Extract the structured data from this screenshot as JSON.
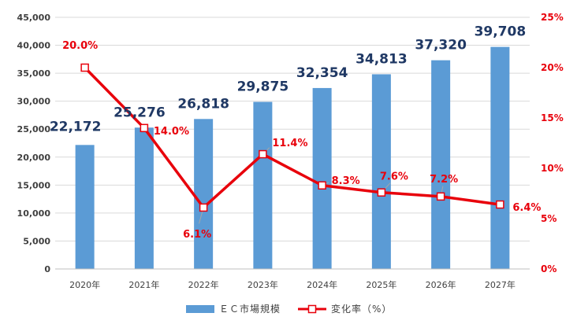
{
  "chart_data": {
    "type": "bar",
    "categories": [
      "2020年",
      "2021年",
      "2022年",
      "2023年",
      "2024年",
      "2025年",
      "2026年",
      "2027年"
    ],
    "series": [
      {
        "name": "ＥＣ市場規模",
        "type": "bar",
        "axis": "left",
        "values": [
          22172,
          25276,
          26818,
          29875,
          32354,
          34813,
          37320,
          39708
        ],
        "labels": [
          "22,172",
          "25,276",
          "26,818",
          "29,875",
          "32,354",
          "34,813",
          "37,320",
          "39,708"
        ],
        "color": "#5b9bd5"
      },
      {
        "name": "変化率（%）",
        "type": "line",
        "axis": "right",
        "values": [
          20.0,
          14.0,
          6.1,
          11.4,
          8.3,
          7.6,
          7.2,
          6.4
        ],
        "labels": [
          "20.0%",
          "14.0%",
          "6.1%",
          "11.4%",
          "8.3%",
          "7.6%",
          "7.2%",
          "6.4%"
        ],
        "color": "#e8000b"
      }
    ],
    "y_left": {
      "range": [
        0,
        45000
      ],
      "ticks": [
        0,
        5000,
        10000,
        15000,
        20000,
        25000,
        30000,
        35000,
        40000,
        45000
      ],
      "tick_labels": [
        "0",
        "5,000",
        "10,000",
        "15,000",
        "20,000",
        "25,000",
        "30,000",
        "35,000",
        "40,000",
        "45,000"
      ]
    },
    "y_right": {
      "range": [
        0,
        25
      ],
      "ticks": [
        0,
        5,
        10,
        15,
        20,
        25
      ],
      "tick_labels": [
        "0%",
        "5%",
        "10%",
        "15%",
        "20%",
        "25%"
      ]
    },
    "grid": true,
    "legend_position": "bottom"
  }
}
